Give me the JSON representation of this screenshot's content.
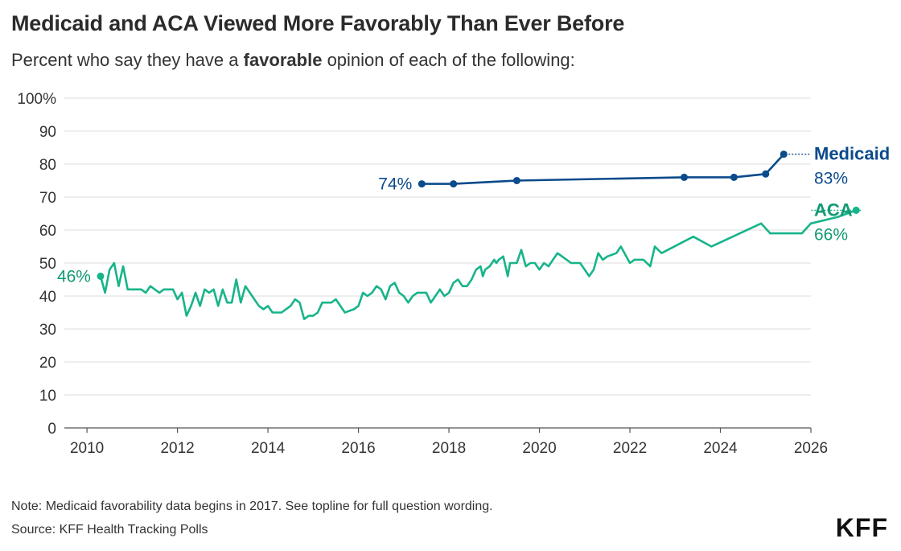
{
  "header": {
    "title": "Medicaid and ACA Viewed More Favorably Than Ever Before",
    "subtitle_pre": "Percent who say they have a ",
    "subtitle_bold": "favorable",
    "subtitle_post": " opinion of each of the following:"
  },
  "footer": {
    "note": "Note: Medicaid favorability data begins in 2017. See topline for full question wording.",
    "source": "Source: KFF Health Tracking Polls",
    "logo": "KFF"
  },
  "colors": {
    "medicaid": "#0b4a8b",
    "aca": "#17b48a",
    "aca_label": "#129a74"
  },
  "chart_data": {
    "type": "line",
    "title": "Medicaid and ACA Viewed More Favorably Than Ever Before",
    "xlabel": "",
    "ylabel": "",
    "xlim": [
      2009.5,
      2026
    ],
    "ylim": [
      0,
      100
    ],
    "x_ticks": [
      2010,
      2012,
      2014,
      2016,
      2018,
      2020,
      2022,
      2024,
      2026
    ],
    "y_ticks": [
      0,
      10,
      20,
      30,
      40,
      50,
      60,
      70,
      80,
      90,
      100
    ],
    "y_tick_labels": [
      "0",
      "10",
      "20",
      "30",
      "40",
      "50",
      "60",
      "70",
      "80",
      "90",
      "100%"
    ],
    "grid": true,
    "series": [
      {
        "name": "Medicaid",
        "color": "#0b4a8b",
        "markers": true,
        "start_label": "74%",
        "end_label": "83%",
        "points": [
          [
            2017.4,
            74
          ],
          [
            2018.1,
            74
          ],
          [
            2019.5,
            75
          ],
          [
            2023.2,
            76
          ],
          [
            2024.3,
            76
          ],
          [
            2025.0,
            77
          ],
          [
            2025.4,
            83
          ]
        ]
      },
      {
        "name": "ACA",
        "color": "#17b48a",
        "markers": false,
        "start_label": "46%",
        "end_label": "66%",
        "points": [
          [
            2010.3,
            46
          ],
          [
            2010.4,
            41
          ],
          [
            2010.5,
            48
          ],
          [
            2010.6,
            50
          ],
          [
            2010.7,
            43
          ],
          [
            2010.8,
            49
          ],
          [
            2010.9,
            42
          ],
          [
            2011.1,
            42
          ],
          [
            2011.2,
            42
          ],
          [
            2011.3,
            41
          ],
          [
            2011.4,
            43
          ],
          [
            2011.5,
            42
          ],
          [
            2011.6,
            41
          ],
          [
            2011.7,
            42
          ],
          [
            2011.9,
            42
          ],
          [
            2012.0,
            39
          ],
          [
            2012.1,
            41
          ],
          [
            2012.2,
            34
          ],
          [
            2012.3,
            37
          ],
          [
            2012.4,
            41
          ],
          [
            2012.5,
            37
          ],
          [
            2012.6,
            42
          ],
          [
            2012.7,
            41
          ],
          [
            2012.8,
            42
          ],
          [
            2012.9,
            37
          ],
          [
            2013.0,
            42
          ],
          [
            2013.1,
            38
          ],
          [
            2013.2,
            38
          ],
          [
            2013.3,
            45
          ],
          [
            2013.4,
            38
          ],
          [
            2013.5,
            43
          ],
          [
            2013.6,
            41
          ],
          [
            2013.8,
            37
          ],
          [
            2013.9,
            36
          ],
          [
            2014.0,
            37
          ],
          [
            2014.1,
            35
          ],
          [
            2014.3,
            35
          ],
          [
            2014.5,
            37
          ],
          [
            2014.6,
            39
          ],
          [
            2014.7,
            38
          ],
          [
            2014.8,
            33
          ],
          [
            2014.9,
            34
          ],
          [
            2015.0,
            34
          ],
          [
            2015.1,
            35
          ],
          [
            2015.2,
            38
          ],
          [
            2015.4,
            38
          ],
          [
            2015.5,
            39
          ],
          [
            2015.7,
            35
          ],
          [
            2015.9,
            36
          ],
          [
            2016.0,
            37
          ],
          [
            2016.1,
            41
          ],
          [
            2016.2,
            40
          ],
          [
            2016.3,
            41
          ],
          [
            2016.4,
            43
          ],
          [
            2016.5,
            42
          ],
          [
            2016.6,
            39
          ],
          [
            2016.7,
            43
          ],
          [
            2016.8,
            44
          ],
          [
            2016.9,
            41
          ],
          [
            2017.0,
            40
          ],
          [
            2017.1,
            38
          ],
          [
            2017.2,
            40
          ],
          [
            2017.3,
            41
          ],
          [
            2017.5,
            41
          ],
          [
            2017.6,
            38
          ],
          [
            2017.7,
            40
          ],
          [
            2017.8,
            42
          ],
          [
            2017.9,
            40
          ],
          [
            2018.0,
            41
          ],
          [
            2018.1,
            44
          ],
          [
            2018.2,
            45
          ],
          [
            2018.3,
            43
          ],
          [
            2018.4,
            43
          ],
          [
            2018.5,
            45
          ],
          [
            2018.6,
            48
          ],
          [
            2018.7,
            49
          ],
          [
            2018.75,
            46
          ],
          [
            2018.8,
            48
          ],
          [
            2018.9,
            49
          ],
          [
            2019.0,
            51
          ],
          [
            2019.05,
            50
          ],
          [
            2019.1,
            51
          ],
          [
            2019.2,
            52
          ],
          [
            2019.3,
            46
          ],
          [
            2019.35,
            50
          ],
          [
            2019.5,
            50
          ],
          [
            2019.6,
            54
          ],
          [
            2019.7,
            49
          ],
          [
            2019.8,
            50
          ],
          [
            2019.9,
            50
          ],
          [
            2020.0,
            48
          ],
          [
            2020.1,
            50
          ],
          [
            2020.2,
            49
          ],
          [
            2020.3,
            51
          ],
          [
            2020.4,
            53
          ],
          [
            2020.5,
            52
          ],
          [
            2020.7,
            50
          ],
          [
            2020.9,
            50
          ],
          [
            2021.1,
            46
          ],
          [
            2021.2,
            48
          ],
          [
            2021.3,
            53
          ],
          [
            2021.4,
            51
          ],
          [
            2021.5,
            52
          ],
          [
            2021.7,
            53
          ],
          [
            2021.8,
            55
          ],
          [
            2022.0,
            50
          ],
          [
            2022.1,
            51
          ],
          [
            2022.3,
            51
          ],
          [
            2022.45,
            49
          ],
          [
            2022.55,
            55
          ],
          [
            2022.7,
            53
          ],
          [
            2023.4,
            58
          ],
          [
            2023.8,
            55
          ],
          [
            2024.9,
            62
          ],
          [
            2025.1,
            59
          ],
          [
            2025.8,
            59
          ],
          [
            2026.0,
            62
          ],
          [
            2026.6,
            64
          ],
          [
            2027.0,
            66
          ]
        ]
      }
    ]
  }
}
